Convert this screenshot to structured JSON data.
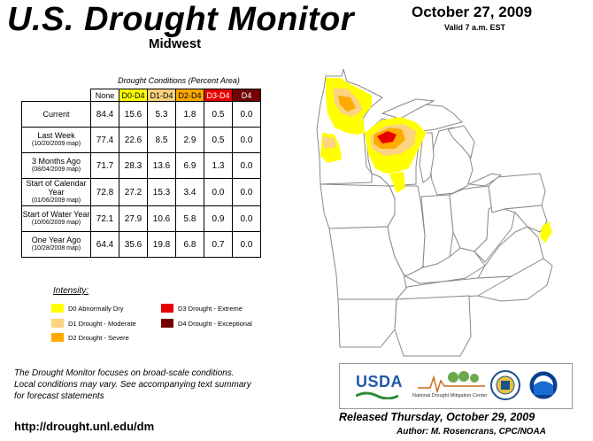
{
  "header": {
    "title": "U.S. Drought Monitor",
    "region": "Midwest",
    "date": "October 27, 2009",
    "valid": "Valid 7 a.m. EST"
  },
  "table": {
    "caption": "Drought Conditions (Percent Area)",
    "columns": [
      "None",
      "D0-D4",
      "D1-D4",
      "D2-D4",
      "D3-D4",
      "D4"
    ],
    "column_colors": [
      "#ffffff",
      "#ffff00",
      "#fcd37f",
      "#ffaa00",
      "#e60000",
      "#730000"
    ],
    "column_text_colors": [
      "#000000",
      "#000000",
      "#000000",
      "#000000",
      "#ffffff",
      "#ffffff"
    ],
    "rows": [
      {
        "label": "Current",
        "sub": "",
        "values": [
          "84.4",
          "15.6",
          "5.3",
          "1.8",
          "0.5",
          "0.0"
        ]
      },
      {
        "label": "Last Week",
        "sub": "(10/20/2009 map)",
        "values": [
          "77.4",
          "22.6",
          "8.5",
          "2.9",
          "0.5",
          "0.0"
        ]
      },
      {
        "label": "3 Months Ago",
        "sub": "(08/04/2009 map)",
        "values": [
          "71.7",
          "28.3",
          "13.6",
          "6.9",
          "1.3",
          "0.0"
        ]
      },
      {
        "label": "Start of Calendar Year",
        "sub": "(01/06/2009 map)",
        "values": [
          "72.8",
          "27.2",
          "15.3",
          "3.4",
          "0.0",
          "0.0"
        ]
      },
      {
        "label": "Start of Water Year",
        "sub": "(10/06/2009 map)",
        "values": [
          "72.1",
          "27.9",
          "10.6",
          "5.8",
          "0.9",
          "0.0"
        ]
      },
      {
        "label": "One Year Ago",
        "sub": "(10/28/2008 map)",
        "values": [
          "64.4",
          "35.6",
          "19.8",
          "6.8",
          "0.7",
          "0.0"
        ]
      }
    ]
  },
  "legend": {
    "title": "Intensity:",
    "items": [
      {
        "label": "D0 Abnormally Dry",
        "color": "#ffff00"
      },
      {
        "label": "D1 Drought - Moderate",
        "color": "#fcd37f"
      },
      {
        "label": "D2 Drought - Severe",
        "color": "#ffaa00"
      },
      {
        "label": "D3 Drought - Extreme",
        "color": "#e60000"
      },
      {
        "label": "D4 Drought - Exceptional",
        "color": "#730000"
      }
    ]
  },
  "footer": {
    "note_lines": [
      "The Drought Monitor focuses on broad-scale conditions.",
      "Local conditions may vary. See accompanying text summary",
      "for forecast statements"
    ],
    "url": "http://drought.unl.edu/dm",
    "released": "Released Thursday, October 29, 2009",
    "author": "Author: M. Rosencrans, CPC/NOAA"
  },
  "logos": {
    "usda": "USDA",
    "ndmc": "National Drought Mitigation Center"
  }
}
